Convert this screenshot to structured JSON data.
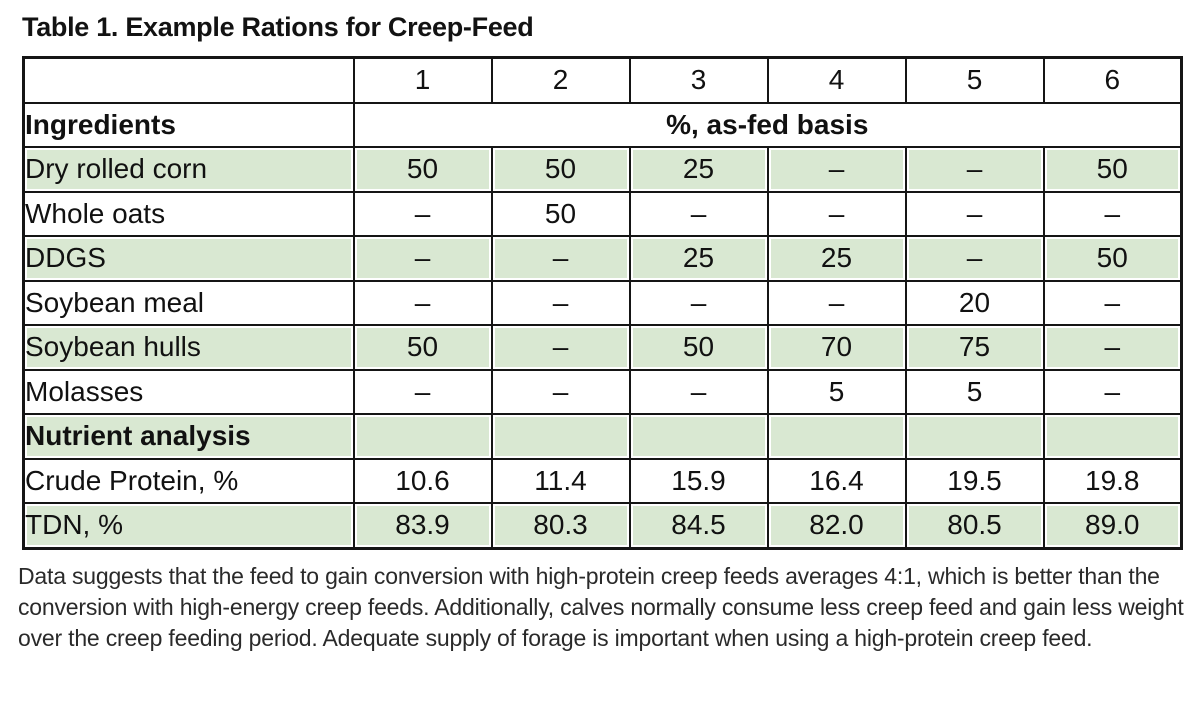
{
  "title": "Table 1. Example Rations for Creep-Feed",
  "table": {
    "header": {
      "blank": "",
      "columns": [
        "1",
        "2",
        "3",
        "4",
        "5",
        "6"
      ]
    },
    "section": {
      "label": "Ingredients",
      "span_label": "%, as-fed basis"
    },
    "rows": [
      {
        "label": "Dry rolled corn",
        "values": [
          "50",
          "50",
          "25",
          "–",
          "–",
          "50"
        ],
        "shaded": true,
        "bold": false
      },
      {
        "label": "Whole oats",
        "values": [
          "–",
          "50",
          "–",
          "–",
          "–",
          "–"
        ],
        "shaded": false,
        "bold": false
      },
      {
        "label": "DDGS",
        "values": [
          "–",
          "–",
          "25",
          "25",
          "–",
          "50"
        ],
        "shaded": true,
        "bold": false
      },
      {
        "label": "Soybean meal",
        "values": [
          "–",
          "–",
          "–",
          "–",
          "20",
          "–"
        ],
        "shaded": false,
        "bold": false
      },
      {
        "label": "Soybean hulls",
        "values": [
          "50",
          "–",
          "50",
          "70",
          "75",
          "–"
        ],
        "shaded": true,
        "bold": false
      },
      {
        "label": "Molasses",
        "values": [
          "–",
          "–",
          "–",
          "5",
          "5",
          "–"
        ],
        "shaded": false,
        "bold": false
      },
      {
        "label": "Nutrient analysis",
        "values": [
          "",
          "",
          "",
          "",
          "",
          ""
        ],
        "shaded": true,
        "bold": true
      },
      {
        "label": "Crude Protein, %",
        "values": [
          "10.6",
          "11.4",
          "15.9",
          "16.4",
          "19.5",
          "19.8"
        ],
        "shaded": false,
        "bold": false
      },
      {
        "label": "TDN, %",
        "values": [
          "83.9",
          "80.3",
          "84.5",
          "82.0",
          "80.5",
          "89.0"
        ],
        "shaded": true,
        "bold": false
      }
    ]
  },
  "footnote_lines": [
    "Data suggests that the feed to gain conversion with high-protein creep feeds averages 4:1, which is better than the",
    "conversion with high-energy creep feeds. Additionally, calves normally consume less creep feed and gain less weight",
    "over the creep feeding period. Adequate supply of forage is important when using a high-protein creep feed."
  ],
  "colors": {
    "row_shade": "#d9e8d2",
    "border": "#151515",
    "background": "#ffffff"
  }
}
